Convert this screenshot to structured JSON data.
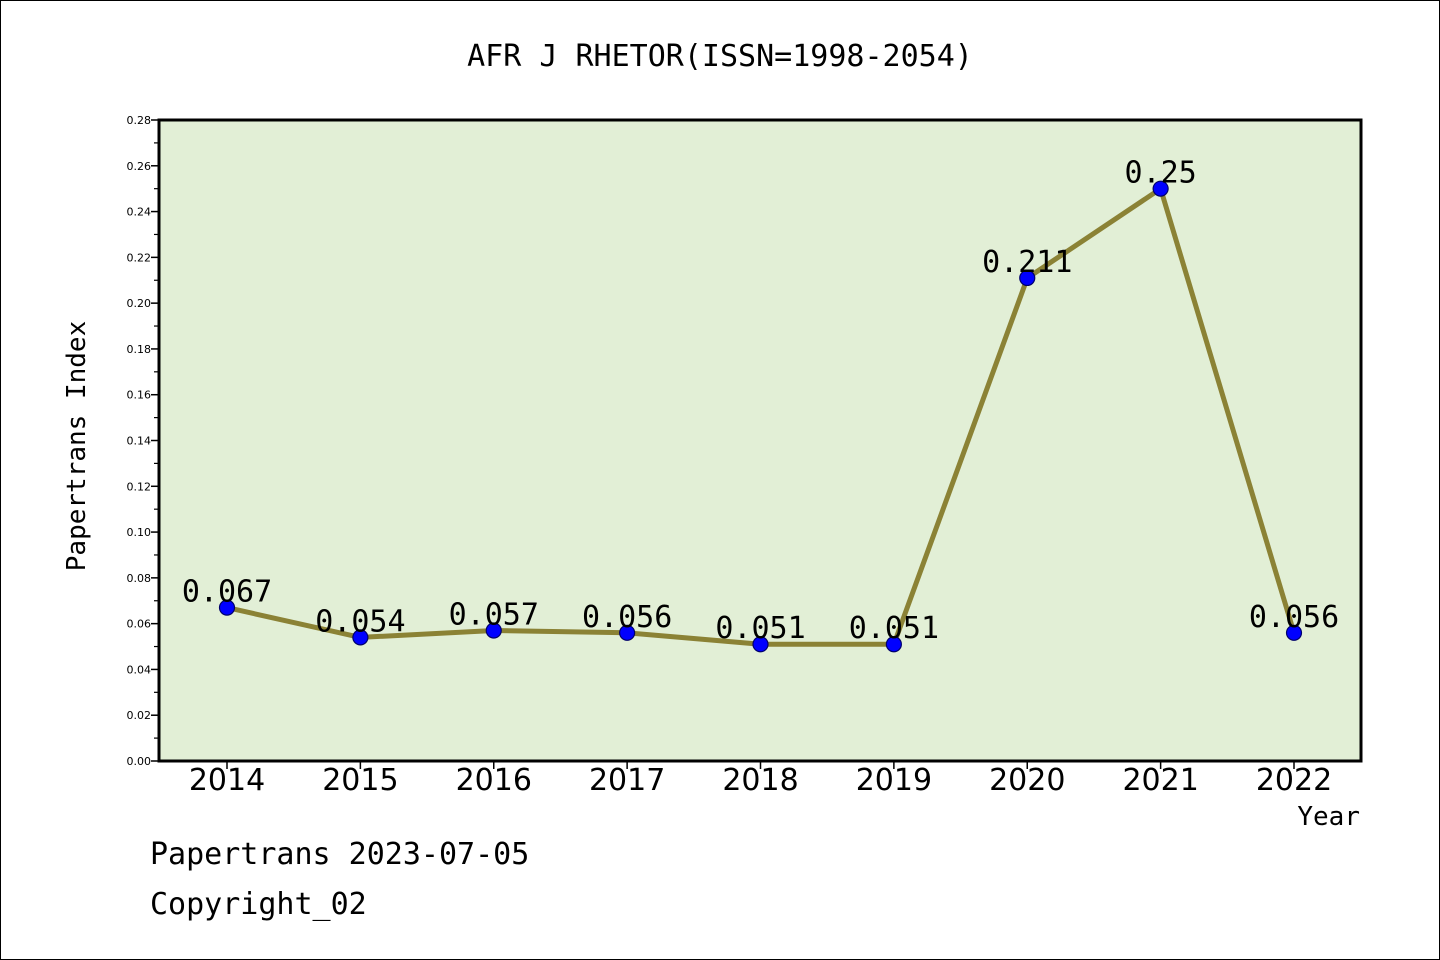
{
  "chart_data": {
    "type": "line",
    "title": "AFR J RHETOR(ISSN=1998-2054)",
    "xlabel": "Year",
    "ylabel": "Papertrans Index",
    "categories": [
      "2014",
      "2015",
      "2016",
      "2017",
      "2018",
      "2019",
      "2020",
      "2021",
      "2022"
    ],
    "values": [
      0.067,
      0.054,
      0.057,
      0.056,
      0.051,
      0.051,
      0.211,
      0.25,
      0.056
    ],
    "data_labels": [
      "0.067",
      "0.054",
      "0.057",
      "0.056",
      "0.051",
      "0.051",
      "0.211",
      "0.25",
      "0.056"
    ],
    "ylim": [
      0,
      0.28
    ],
    "yticks": [
      "0.00",
      "0.02",
      "0.04",
      "0.06",
      "0.08",
      "0.10",
      "0.12",
      "0.14",
      "0.16",
      "0.18",
      "0.20",
      "0.22",
      "0.24",
      "0.26",
      "0.28"
    ],
    "grid": false,
    "legend": "none",
    "colors": {
      "plot_background": "#e2efd6",
      "line": "#8b8235",
      "marker": "#0000ff",
      "axis": "#000000"
    }
  },
  "footer": {
    "line1": "Papertrans 2023-07-05",
    "line2": "Copyright_02"
  }
}
